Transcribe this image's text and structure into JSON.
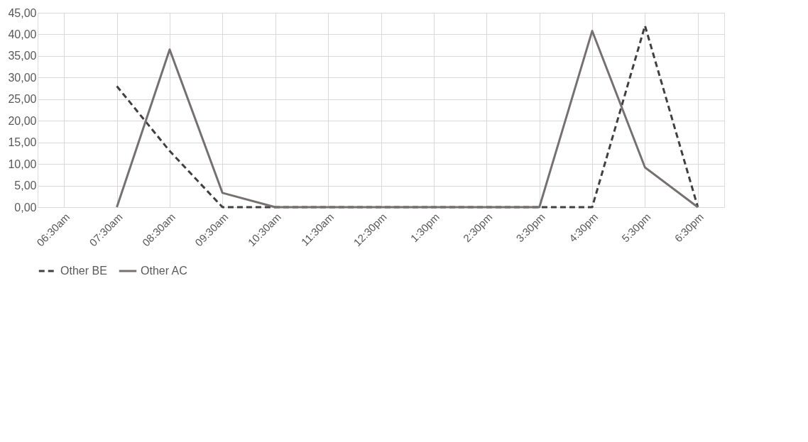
{
  "chart_data": {
    "type": "line",
    "categories": [
      "06:30am",
      "07:30am",
      "08:30am",
      "09:30am",
      "10:30am",
      "11:30am",
      "12:30pm",
      "1:30pm",
      "2:30pm",
      "3:30pm",
      "4:30pm",
      "5:30pm",
      "6:30pm"
    ],
    "series": [
      {
        "name": "Other BE",
        "color": "#404040",
        "line_style": "dashed",
        "values": [
          null,
          28,
          13,
          0,
          0,
          0,
          0,
          0,
          0,
          0,
          0,
          42,
          0
        ]
      },
      {
        "name": "Other AC",
        "color": "#767171",
        "line_style": "solid",
        "values": [
          null,
          0,
          36.5,
          3.3,
          0,
          0,
          0,
          0,
          0,
          0,
          40.8,
          9.2,
          0
        ]
      }
    ],
    "ylim": [
      0,
      45
    ],
    "yticks": [
      {
        "value": 0,
        "label": "0,00"
      },
      {
        "value": 5,
        "label": "5,00"
      },
      {
        "value": 10,
        "label": "10,00"
      },
      {
        "value": 15,
        "label": "15,00"
      },
      {
        "value": 20,
        "label": "20,00"
      },
      {
        "value": 25,
        "label": "25,00"
      },
      {
        "value": 30,
        "label": "30,00"
      },
      {
        "value": 35,
        "label": "35,00"
      },
      {
        "value": 40,
        "label": "40,00"
      },
      {
        "value": 45,
        "label": "45,00"
      }
    ],
    "grid": true,
    "legend": "bottom"
  }
}
